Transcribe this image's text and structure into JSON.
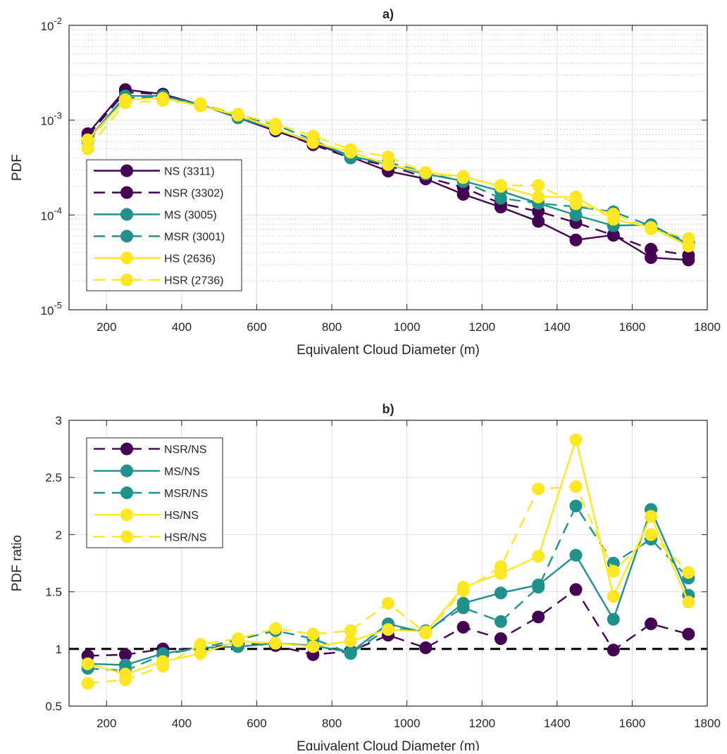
{
  "chart_data": [
    {
      "type": "line",
      "title": "a)",
      "xlabel": "Equivalent Cloud Diameter (m)",
      "ylabel": "PDF",
      "xlim": [
        100,
        1800
      ],
      "ylim": [
        1e-05,
        0.01
      ],
      "yscale": "log",
      "grid": true,
      "minor_grid": true,
      "legend_position": "bottom-left",
      "x": [
        150,
        250,
        350,
        450,
        550,
        650,
        750,
        850,
        950,
        1050,
        1150,
        1250,
        1350,
        1450,
        1550,
        1650,
        1750
      ],
      "x_ticks": [
        200,
        400,
        600,
        800,
        1000,
        1200,
        1400,
        1600,
        1800
      ],
      "x_tick_labels": [
        "200",
        "400",
        "600",
        "800",
        "1000",
        "1200",
        "1400",
        "1600",
        "1800"
      ],
      "y_ticks": [
        1e-05,
        0.0001,
        0.001,
        0.01
      ],
      "y_tick_labels": [
        {
          "base": "10",
          "exp": "-5"
        },
        {
          "base": "10",
          "exp": "-4"
        },
        {
          "base": "10",
          "exp": "-3"
        },
        {
          "base": "10",
          "exp": "-2"
        }
      ],
      "series": [
        {
          "name": "NS (3311)",
          "color": "#440154",
          "dash": "solid",
          "values": [
            0.00072,
            0.0021,
            0.00188,
            0.00145,
            0.00106,
            0.00077,
            0.00057,
            0.00041,
            0.00029,
            0.00024,
            0.000165,
            0.000121,
            8.55e-05,
            5.45e-05,
            6.15e-05,
            3.55e-05,
            3.35e-05
          ]
        },
        {
          "name": "NSR (3302)",
          "color": "#440154",
          "dash": "dashed",
          "values": [
            0.00068,
            0.00198,
            0.00186,
            0.00146,
            0.00108,
            0.00078,
            0.00055,
            0.0004,
            0.00033,
            0.00025,
            0.000195,
            0.000132,
            0.000109,
            8.3e-05,
            6.1e-05,
            4.35e-05,
            3.75e-05
          ]
        },
        {
          "name": "MS (3005)",
          "color": "#21918c",
          "dash": "solid",
          "values": [
            0.00062,
            0.0018,
            0.0018,
            0.00146,
            0.00106,
            0.0008,
            0.00059,
            0.00042,
            0.00034,
            0.00027,
            0.000228,
            0.000179,
            0.000133,
            9.95e-05,
            7.7e-05,
            7.9e-05,
            4.9e-05
          ]
        },
        {
          "name": "MSR (3001)",
          "color": "#21918c",
          "dash": "dashed",
          "values": [
            0.0006,
            0.0017,
            0.00178,
            0.00146,
            0.00113,
            0.00089,
            0.00062,
            0.0004,
            0.00036,
            0.00028,
            0.000225,
            0.00015,
            0.000133,
            0.000122,
            0.000108,
            7.65e-05,
            5.15e-05
          ]
        },
        {
          "name": "HS (2636)",
          "color": "#fde725",
          "dash": "solid",
          "values": [
            0.00062,
            0.00164,
            0.0017,
            0.00141,
            0.00113,
            0.00081,
            0.00058,
            0.00046,
            0.00034,
            0.00028,
            0.000255,
            0.0002,
            0.000155,
            0.000155,
            9e-05,
            7.4e-05,
            4.7e-05
          ]
        },
        {
          "name": "HSR (2736)",
          "color": "#fde725",
          "dash": "dashed",
          "values": [
            0.0005,
            0.00152,
            0.00161,
            0.0015,
            0.00116,
            0.00091,
            0.00068,
            0.00049,
            0.00041,
            0.00028,
            0.000248,
            0.000205,
            0.000205,
            0.000131,
            0.000102,
            7.15e-05,
            5.65e-05
          ]
        }
      ]
    },
    {
      "type": "line",
      "title": "b)",
      "xlabel": "Equivalent Cloud Diameter (m)",
      "ylabel": "PDF ratio",
      "xlim": [
        100,
        1800
      ],
      "ylim": [
        0.5,
        3
      ],
      "grid": true,
      "legend_position": "top-left",
      "reference_line": {
        "y": 1,
        "color": "#000000",
        "dash": "dashed"
      },
      "x": [
        150,
        250,
        350,
        450,
        550,
        650,
        750,
        850,
        950,
        1050,
        1150,
        1250,
        1350,
        1450,
        1550,
        1650,
        1750
      ],
      "x_ticks": [
        200,
        400,
        600,
        800,
        1000,
        1200,
        1400,
        1600,
        1800
      ],
      "x_tick_labels": [
        "200",
        "400",
        "600",
        "800",
        "1000",
        "1200",
        "1400",
        "1600",
        "1800"
      ],
      "y_ticks": [
        0.5,
        1,
        1.5,
        2,
        2.5,
        3
      ],
      "y_tick_labels": [
        "0.5",
        "1",
        "1.5",
        "2",
        "2.5",
        "3"
      ],
      "series": [
        {
          "name": "NSR/NS",
          "color": "#440154",
          "dash": "dashed",
          "values": [
            0.94,
            0.95,
            1.0,
            1.0,
            1.05,
            1.03,
            0.95,
            0.98,
            1.12,
            1.01,
            1.19,
            1.09,
            1.28,
            1.52,
            0.99,
            1.22,
            1.13
          ]
        },
        {
          "name": "MS/NS",
          "color": "#21918c",
          "dash": "solid",
          "values": [
            0.87,
            0.86,
            0.96,
            1.01,
            1.02,
            1.05,
            1.03,
            0.97,
            1.22,
            1.14,
            1.4,
            1.49,
            1.56,
            1.82,
            1.26,
            2.22,
            1.47
          ]
        },
        {
          "name": "MSR/NS",
          "color": "#21918c",
          "dash": "dashed",
          "values": [
            0.83,
            0.81,
            0.95,
            1.01,
            1.08,
            1.16,
            1.09,
            0.96,
            1.18,
            1.16,
            1.36,
            1.24,
            1.54,
            2.25,
            1.75,
            1.96,
            1.62
          ]
        },
        {
          "name": "HS/NS",
          "color": "#fde725",
          "dash": "solid",
          "values": [
            0.87,
            0.78,
            0.89,
            0.96,
            1.07,
            1.05,
            1.02,
            1.07,
            1.17,
            1.15,
            1.54,
            1.66,
            1.81,
            2.83,
            1.46,
            2.16,
            1.41
          ]
        },
        {
          "name": "HSR/NS",
          "color": "#fde725",
          "dash": "dashed",
          "values": [
            0.7,
            0.73,
            0.85,
            1.04,
            1.09,
            1.18,
            1.13,
            1.16,
            1.4,
            1.14,
            1.51,
            1.72,
            2.4,
            2.42,
            1.68,
            2.0,
            1.67
          ]
        }
      ]
    }
  ]
}
